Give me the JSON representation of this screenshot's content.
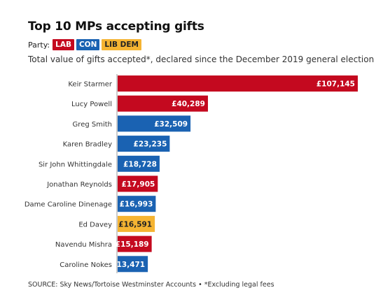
{
  "title": "Top 10 MPs accepting gifts",
  "legend": {
    "label": "Party:",
    "items": [
      {
        "name": "LAB",
        "color": "#c4091f",
        "text_color": "#ffffff"
      },
      {
        "name": "CON",
        "color": "#1a62b2",
        "text_color": "#ffffff"
      },
      {
        "name": "LIB DEM",
        "color": "#f5b432",
        "text_color": "#222222"
      }
    ]
  },
  "subtitle": "Total value of gifts accepted*, declared since the December 2019 general election",
  "source": "SOURCE: Sky News/Tortoise Westminster Accounts • *Excluding legal fees",
  "chart_data": {
    "type": "bar",
    "orientation": "horizontal",
    "categories": [
      "Keir Starmer",
      "Lucy Powell",
      "Greg Smith",
      "Karen Bradley",
      "Sir John Whittingdale",
      "Jonathan Reynolds",
      "Dame Caroline Dinenage",
      "Ed Davey",
      "Navendu Mishra",
      "Caroline Nokes"
    ],
    "values": [
      107145,
      40289,
      32509,
      23235,
      18728,
      17905,
      16993,
      16591,
      15189,
      13471
    ],
    "labels": [
      "£107,145",
      "£40,289",
      "£32,509",
      "£23,235",
      "£18,728",
      "£17,905",
      "£16,993",
      "£16,591",
      "£15,189",
      "£13,471"
    ],
    "party": [
      "LAB",
      "LAB",
      "CON",
      "CON",
      "CON",
      "LAB",
      "CON",
      "LIB DEM",
      "LAB",
      "CON"
    ],
    "party_colors": {
      "LAB": "#c4091f",
      "CON": "#1a62b2",
      "LIB DEM": "#f5b432"
    },
    "label_colors": {
      "LAB": "#ffffff",
      "CON": "#ffffff",
      "LIB DEM": "#222222"
    },
    "xlim": [
      0,
      107145
    ],
    "grid": false,
    "legend_position": "top-left"
  }
}
